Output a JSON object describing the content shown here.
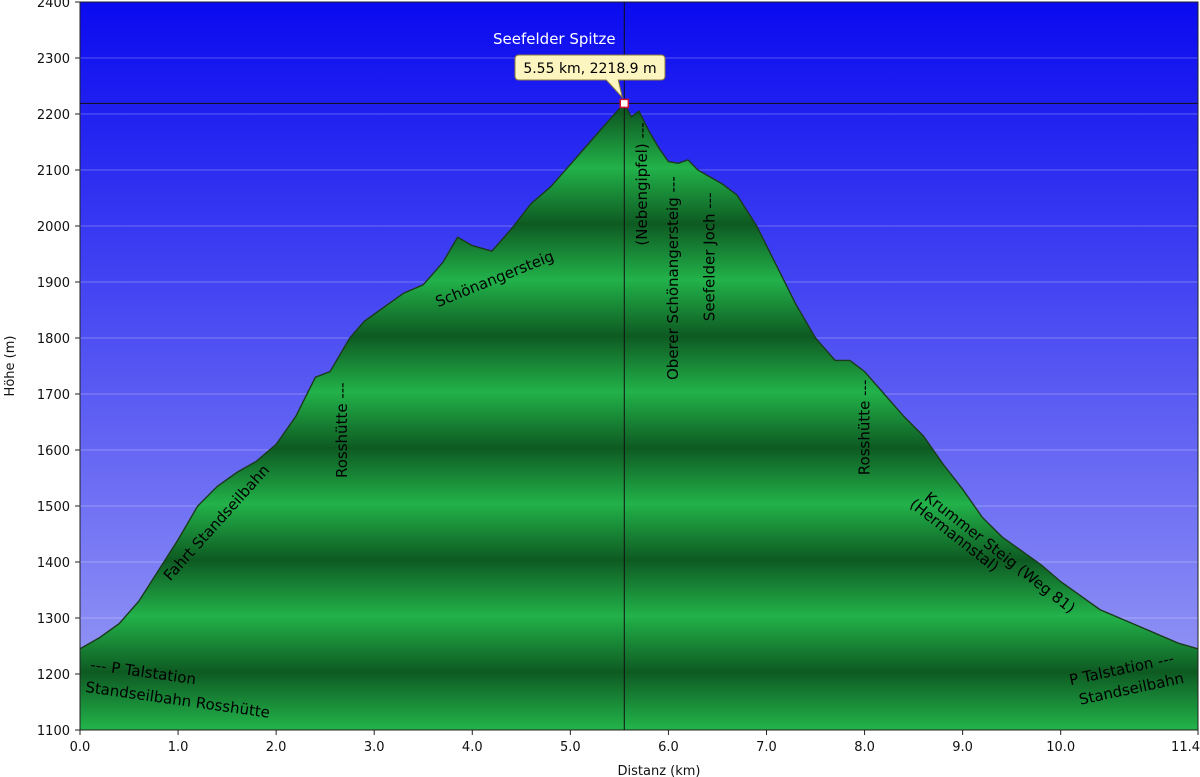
{
  "chart_data": {
    "type": "area",
    "xlabel": "Distanz  (km)",
    "ylabel": "Höhe (m)",
    "xlim": [
      0,
      11.4
    ],
    "ylim": [
      1100,
      2400
    ],
    "x_ticks": [
      "0.0",
      "1.0",
      "2.0",
      "3.0",
      "4.0",
      "5.0",
      "6.0",
      "7.0",
      "8.0",
      "9.0",
      "10.0",
      "11.4"
    ],
    "y_ticks": [
      "1100",
      "1200",
      "1300",
      "1400",
      "1500",
      "1600",
      "1700",
      "1800",
      "1900",
      "2000",
      "2100",
      "2200",
      "2300",
      "2400"
    ],
    "grid": true,
    "series": [
      {
        "x": [
          0.0,
          0.2,
          0.4,
          0.6,
          0.8,
          1.0,
          1.2,
          1.4,
          1.6,
          1.8,
          2.0,
          2.2,
          2.4,
          2.55,
          2.75,
          2.9,
          3.1,
          3.3,
          3.5,
          3.7,
          3.85,
          4.0,
          4.2,
          4.4,
          4.6,
          4.8,
          5.0,
          5.2,
          5.4,
          5.55,
          5.62,
          5.7,
          5.8,
          5.9,
          6.0,
          6.1,
          6.2,
          6.3,
          6.4,
          6.55,
          6.7,
          6.9,
          7.1,
          7.3,
          7.5,
          7.7,
          7.85,
          8.0,
          8.2,
          8.4,
          8.6,
          8.8,
          9.0,
          9.2,
          9.4,
          9.6,
          9.8,
          10.0,
          10.2,
          10.4,
          10.6,
          10.8,
          11.0,
          11.2,
          11.4
        ],
        "y": [
          1245,
          1265,
          1290,
          1330,
          1385,
          1440,
          1500,
          1535,
          1560,
          1580,
          1610,
          1660,
          1730,
          1740,
          1800,
          1830,
          1855,
          1880,
          1895,
          1935,
          1980,
          1965,
          1955,
          1995,
          2040,
          2070,
          2110,
          2150,
          2190,
          2218.9,
          2195,
          2205,
          2170,
          2140,
          2115,
          2112,
          2118,
          2100,
          2090,
          2075,
          2055,
          2000,
          1930,
          1860,
          1800,
          1760,
          1760,
          1740,
          1700,
          1660,
          1625,
          1575,
          1530,
          1480,
          1445,
          1420,
          1395,
          1365,
          1340,
          1315,
          1300,
          1285,
          1270,
          1255,
          1245
        ]
      }
    ],
    "highlight": {
      "x": 5.55,
      "y": 2218.9,
      "tooltip": "5.55 km, 2218.9 m",
      "label": "Seefelder Spitze"
    },
    "annotations": [
      {
        "text": "--- P Talstation",
        "x": 0.1,
        "y": 1208,
        "rotate": 8
      },
      {
        "text": "Standseilbahn Rosshütte",
        "x": 0.05,
        "y": 1168,
        "rotate": 8
      },
      {
        "text": "Fahrt Standseilbahn",
        "x": 0.92,
        "y": 1365,
        "rotate": -48
      },
      {
        "text": "Rosshütte ---",
        "x": 2.72,
        "y": 1550,
        "rotate": -90
      },
      {
        "text": "Schönangersteig",
        "x": 3.65,
        "y": 1855,
        "rotate": -22
      },
      {
        "text": "(Nebengipfel) ---",
        "x": 5.78,
        "y": 1965,
        "rotate": -90
      },
      {
        "text": "Oberer Schönangersteig ---",
        "x": 6.1,
        "y": 1725,
        "rotate": -90
      },
      {
        "text": "Seefelder Joch ---",
        "x": 6.47,
        "y": 1830,
        "rotate": -90
      },
      {
        "text": "Rosshütte ---",
        "x": 8.05,
        "y": 1555,
        "rotate": -90
      },
      {
        "text": "Krummer Steig (Weg 81)",
        "x": 8.6,
        "y": 1512,
        "rotate": 38
      },
      {
        "text": "(Hermannstal)",
        "x": 8.45,
        "y": 1500,
        "rotate": 38
      },
      {
        "text": "P Talstation ---",
        "x": 10.1,
        "y": 1180,
        "rotate": -12
      },
      {
        "text": "Standseilbahn",
        "x": 10.2,
        "y": 1145,
        "rotate": -12
      }
    ],
    "colors": {
      "sky_top": "#0a0af0",
      "sky_bottom": "#9ea0f5",
      "fill_light": "#22b24a",
      "fill_dark": "#0e5a22",
      "outline": "#1b3a1b",
      "crosshair": "#111111",
      "tooltip_bg": "#fdf5c0"
    }
  }
}
